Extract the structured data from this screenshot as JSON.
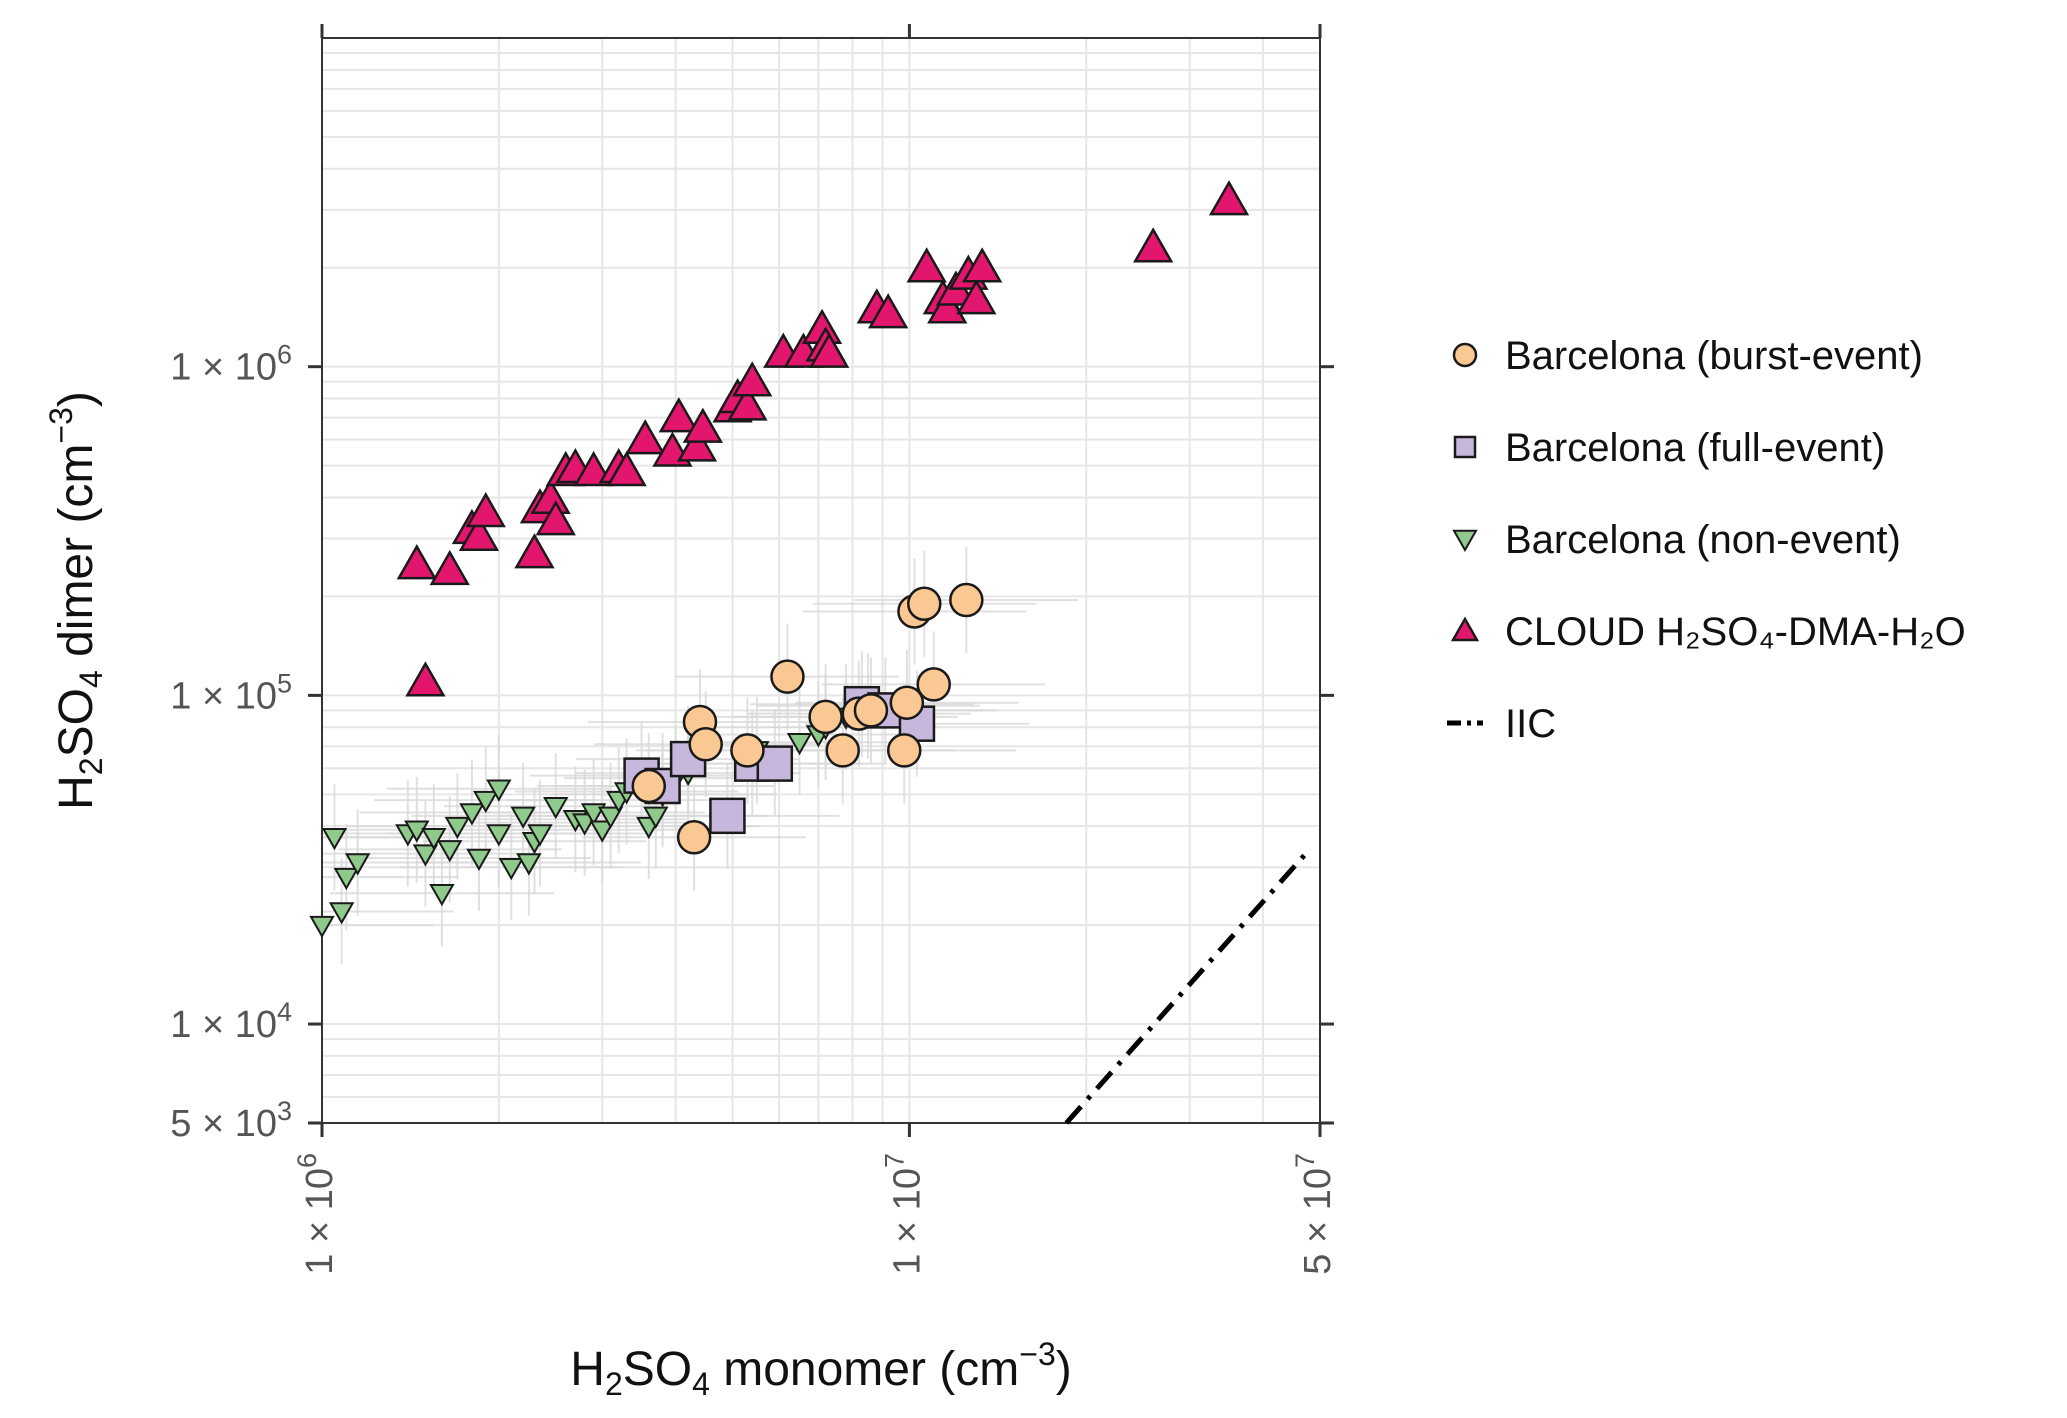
{
  "chart_data": {
    "type": "scatter",
    "title": "",
    "xlabel": {
      "main": "H",
      "sub1": "2",
      "mid": "SO",
      "sub2": "4",
      "rest": " monomer (cm",
      "sup": "−3",
      "end": ")"
    },
    "ylabel": {
      "main": "H",
      "sub1": "2",
      "mid": "SO",
      "sub2": "4",
      "rest": " dimer (cm",
      "sup": "−3",
      "end": ")"
    },
    "x_scale": "log",
    "y_scale": "log",
    "xlim": [
      1000000,
      50000000
    ],
    "ylim": [
      5000,
      10000000
    ],
    "grid": true,
    "legend_position": "right",
    "x_ticks": [
      {
        "value": 1000000,
        "mant": "1",
        "exp": "6"
      },
      {
        "value": 10000000,
        "mant": "1",
        "exp": "7"
      },
      {
        "value": 50000000,
        "mant": "5",
        "exp": "7"
      }
    ],
    "y_ticks": [
      {
        "value": 5000,
        "mant": "5",
        "exp": "3"
      },
      {
        "value": 10000,
        "mant": "1",
        "exp": "4"
      },
      {
        "value": 100000,
        "mant": "1",
        "exp": "5"
      },
      {
        "value": 1000000,
        "mant": "1",
        "exp": "6"
      }
    ],
    "series": [
      {
        "name": "Barcelona (burst-event)",
        "marker": "circle",
        "color": "#f9c893",
        "points": [
          [
            3600000,
            53000
          ],
          [
            4300000,
            37000
          ],
          [
            4400000,
            83000
          ],
          [
            4500000,
            71000
          ],
          [
            5300000,
            68000
          ],
          [
            6200000,
            114000
          ],
          [
            7200000,
            86000
          ],
          [
            7700000,
            68000
          ],
          [
            8200000,
            88000
          ],
          [
            8600000,
            90000
          ],
          [
            9800000,
            68000
          ],
          [
            9900000,
            95000
          ],
          [
            10200000,
            180000
          ],
          [
            10600000,
            190000
          ],
          [
            11000000,
            108000
          ],
          [
            12500000,
            195000
          ]
        ]
      },
      {
        "name": "Barcelona (full-event)",
        "marker": "square",
        "color": "#c7b7dd",
        "points": [
          [
            3500000,
            57000
          ],
          [
            3800000,
            53000
          ],
          [
            4200000,
            64000
          ],
          [
            4900000,
            43000
          ],
          [
            5400000,
            62000
          ],
          [
            5900000,
            62000
          ],
          [
            8300000,
            94000
          ],
          [
            9100000,
            90000
          ],
          [
            10300000,
            82000
          ]
        ]
      },
      {
        "name": "Barcelona (non-event)",
        "marker": "triangle-down",
        "color": "#8fca8c",
        "points": [
          [
            1000000,
            20000
          ],
          [
            1050000,
            37000
          ],
          [
            1080000,
            22000
          ],
          [
            1100000,
            28000
          ],
          [
            1150000,
            31000
          ],
          [
            1400000,
            38000
          ],
          [
            1450000,
            39000
          ],
          [
            1500000,
            33000
          ],
          [
            1550000,
            37000
          ],
          [
            1600000,
            25000
          ],
          [
            1650000,
            34000
          ],
          [
            1700000,
            40000
          ],
          [
            1800000,
            44000
          ],
          [
            1850000,
            32000
          ],
          [
            1900000,
            48000
          ],
          [
            2000000,
            38000
          ],
          [
            2000000,
            52000
          ],
          [
            2100000,
            30000
          ],
          [
            2200000,
            43000
          ],
          [
            2250000,
            31000
          ],
          [
            2300000,
            36000
          ],
          [
            2350000,
            38000
          ],
          [
            2500000,
            46000
          ],
          [
            2700000,
            42000
          ],
          [
            2800000,
            41000
          ],
          [
            2900000,
            44000
          ],
          [
            3000000,
            39000
          ],
          [
            3100000,
            43000
          ],
          [
            3200000,
            48000
          ],
          [
            3300000,
            51000
          ],
          [
            3600000,
            40000
          ],
          [
            3700000,
            43000
          ],
          [
            3800000,
            50000
          ],
          [
            4000000,
            56000
          ],
          [
            4200000,
            58000
          ],
          [
            5500000,
            68000
          ],
          [
            6500000,
            72000
          ],
          [
            7000000,
            76000
          ],
          [
            7200000,
            80000
          ],
          [
            7800000,
            86000
          ],
          [
            8500000,
            93000
          ]
        ]
      },
      {
        "name": "CLOUD H₂SO₄-DMA-H₂O",
        "marker": "triangle-up",
        "color": "#e3166e",
        "points": [
          [
            1450000,
            250000
          ],
          [
            1500000,
            110000
          ],
          [
            1650000,
            240000
          ],
          [
            1800000,
            320000
          ],
          [
            1850000,
            305000
          ],
          [
            1900000,
            360000
          ],
          [
            2300000,
            270000
          ],
          [
            2350000,
            370000
          ],
          [
            2450000,
            395000
          ],
          [
            2500000,
            340000
          ],
          [
            2600000,
            480000
          ],
          [
            2700000,
            490000
          ],
          [
            2900000,
            480000
          ],
          [
            3200000,
            490000
          ],
          [
            3300000,
            480000
          ],
          [
            3550000,
            600000
          ],
          [
            3950000,
            550000
          ],
          [
            4050000,
            700000
          ],
          [
            4350000,
            570000
          ],
          [
            4450000,
            650000
          ],
          [
            5000000,
            750000
          ],
          [
            5100000,
            800000
          ],
          [
            5300000,
            760000
          ],
          [
            5400000,
            900000
          ],
          [
            6100000,
            1100000
          ],
          [
            6600000,
            1100000
          ],
          [
            7100000,
            1300000
          ],
          [
            7200000,
            1150000
          ],
          [
            7300000,
            1100000
          ],
          [
            8800000,
            1500000
          ],
          [
            9200000,
            1450000
          ],
          [
            10700000,
            2000000
          ],
          [
            11400000,
            1600000
          ],
          [
            11600000,
            1500000
          ],
          [
            12000000,
            1700000
          ],
          [
            12600000,
            1900000
          ],
          [
            13000000,
            1600000
          ],
          [
            13300000,
            2000000
          ],
          [
            26000000,
            2300000
          ],
          [
            35000000,
            3200000
          ]
        ]
      },
      {
        "name": "IIC",
        "marker": "dashdot-line",
        "color": "#000000",
        "points": [
          [
            18500000,
            5000
          ],
          [
            48000000,
            34000
          ]
        ]
      }
    ],
    "error_bars_note": ""
  }
}
